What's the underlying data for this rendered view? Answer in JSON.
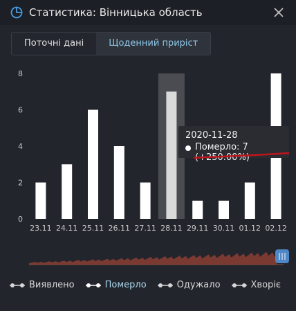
{
  "window": {
    "title": "Статистика: Вінницька область",
    "close_icon": "close-icon",
    "stats_icon": "pie-chart-icon"
  },
  "tabs": [
    {
      "label": "Поточні дані",
      "active": false
    },
    {
      "label": "Щоденний приріст",
      "active": true
    }
  ],
  "chart_data": {
    "type": "bar",
    "categories": [
      "23.11",
      "24.11",
      "25.11",
      "26.11",
      "27.11",
      "28.11",
      "29.11",
      "30.11",
      "01.12",
      "02.12"
    ],
    "values": [
      2,
      3,
      6,
      4,
      2,
      7,
      1,
      1,
      2,
      8
    ],
    "ylim": [
      0,
      8
    ],
    "yticks": [
      "0",
      "2",
      "4",
      "6",
      "8"
    ],
    "highlighted_index": 5,
    "grid": false,
    "bar_color": "#ffffff",
    "highlight_band_color": "#4a4c52"
  },
  "tooltip": {
    "date": "2020-11-28",
    "series_label": "Померло: 7 (+250.00%)",
    "underline_color": "#c0141c"
  },
  "legend": [
    {
      "label": "Виявлено",
      "active": false
    },
    {
      "label": "Померло",
      "active": true
    },
    {
      "label": "Одужало",
      "active": false
    },
    {
      "label": "Хворіє",
      "active": false
    }
  ],
  "colors": {
    "background": "#22252c",
    "accent": "#8fc8ea",
    "navigator_fill": "#7a3a32",
    "handle": "#4f86c6"
  }
}
